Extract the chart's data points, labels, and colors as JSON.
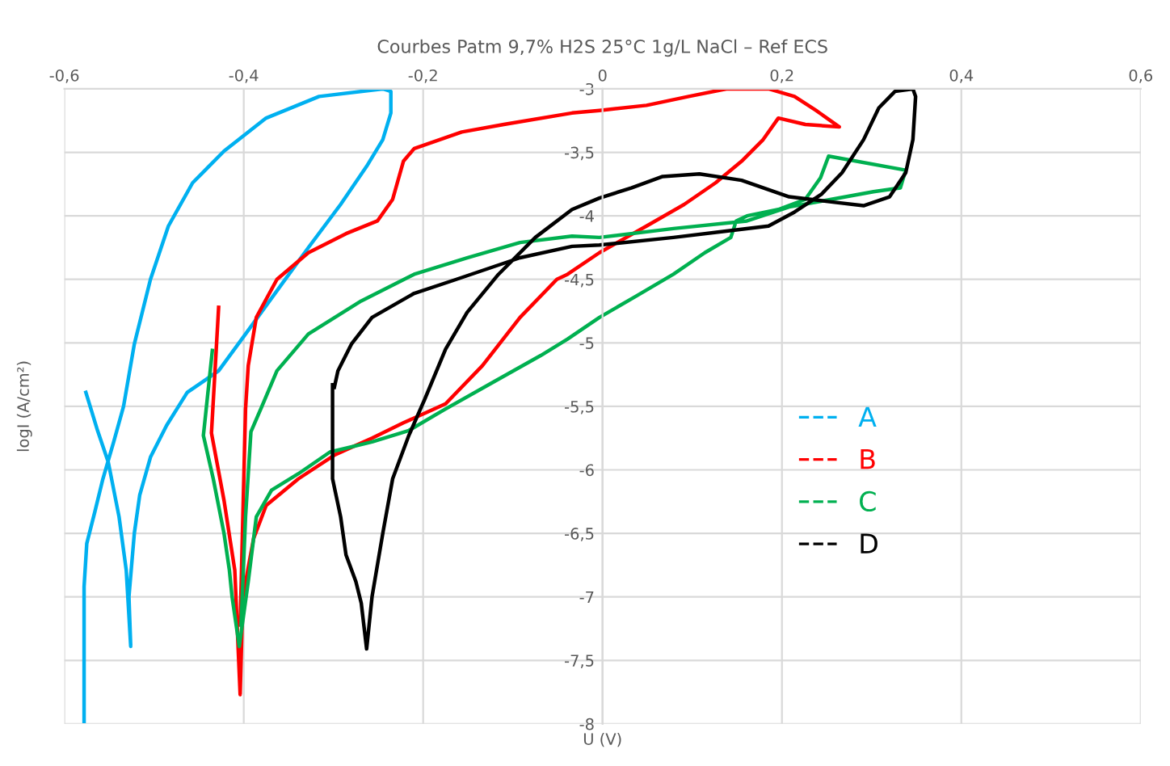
{
  "chart_data": {
    "type": "line",
    "title": "Courbes Patm 9,7% H2S 25°C 1g/L NaCl – Ref ECS",
    "xlabel": "U (V)",
    "ylabel": "logI (A/cm²)",
    "xlim": [
      -0.6,
      0.6
    ],
    "ylim": [
      -8,
      -3
    ],
    "xticks": [
      {
        "value": -0.6,
        "label": "-0,6"
      },
      {
        "value": -0.4,
        "label": "-0,4"
      },
      {
        "value": -0.2,
        "label": "-0,2"
      },
      {
        "value": 0,
        "label": "0"
      },
      {
        "value": 0.2,
        "label": "0,2"
      },
      {
        "value": 0.4,
        "label": "0,4"
      },
      {
        "value": 0.6,
        "label": "0,6"
      }
    ],
    "yticks": [
      -3,
      {
        "value": -3.5,
        "label": "-3,5"
      },
      -4,
      {
        "value": -4.5,
        "label": "-4,5"
      },
      -5,
      {
        "value": -5.5,
        "label": "-5,5"
      },
      -6,
      {
        "value": -6.5,
        "label": "-6,5"
      },
      -7,
      {
        "value": -7.5,
        "label": "-7,5"
      },
      -8
    ],
    "grid": true,
    "legend": "right",
    "marker": "none",
    "line_style": "solid",
    "series": [
      {
        "name": "A",
        "color": "#00b0f0",
        "x": [
          -0.576,
          -0.563,
          -0.551,
          -0.539,
          -0.531,
          -0.526,
          -0.528,
          -0.522,
          -0.516,
          -0.504,
          -0.486,
          -0.463,
          -0.428,
          -0.398,
          -0.363,
          -0.328,
          -0.292,
          -0.263,
          -0.245,
          -0.236,
          -0.236,
          -0.245,
          -0.316,
          -0.375,
          -0.422,
          -0.457,
          -0.484,
          -0.504,
          -0.522,
          -0.534,
          -0.545,
          -0.557,
          -0.566,
          -0.575,
          -0.578,
          -0.578
        ],
        "values": [
          -5.39,
          -5.69,
          -5.94,
          -6.37,
          -6.79,
          -7.39,
          -7.0,
          -6.5,
          -6.2,
          -5.9,
          -5.65,
          -5.39,
          -5.22,
          -4.93,
          -4.59,
          -4.25,
          -3.91,
          -3.61,
          -3.4,
          -3.19,
          -3.02,
          -3.0,
          -3.06,
          -3.23,
          -3.49,
          -3.74,
          -4.08,
          -4.5,
          -5.01,
          -5.5,
          -5.78,
          -6.07,
          -6.33,
          -6.58,
          -6.92,
          -7.98
        ]
      },
      {
        "name": "B",
        "color": "#ff0000",
        "x": [
          -0.428,
          -0.436,
          -0.422,
          -0.41,
          -0.404,
          -0.401,
          -0.389,
          -0.375,
          -0.339,
          -0.298,
          -0.257,
          -0.222,
          -0.175,
          -0.134,
          -0.092,
          -0.051,
          -0.039,
          -0.0035,
          0.049,
          0.091,
          0.126,
          0.155,
          0.179,
          0.196,
          0.226,
          0.264,
          0.238,
          0.214,
          0.185,
          0.138,
          0.096,
          0.049,
          -0.0035,
          -0.034,
          -0.11,
          -0.157,
          -0.21,
          -0.222,
          -0.234,
          -0.251,
          -0.286,
          -0.328,
          -0.363,
          -0.386,
          -0.395,
          -0.398,
          -0.401,
          -0.404
        ],
        "values": [
          -4.72,
          -5.71,
          -6.24,
          -6.79,
          -7.77,
          -7.0,
          -6.54,
          -6.28,
          -6.07,
          -5.88,
          -5.75,
          -5.63,
          -5.48,
          -5.18,
          -4.8,
          -4.5,
          -4.46,
          -4.29,
          -4.08,
          -3.91,
          -3.74,
          -3.57,
          -3.4,
          -3.23,
          -3.28,
          -3.3,
          -3.17,
          -3.06,
          -3.0,
          -3.0,
          -3.06,
          -3.13,
          -3.17,
          -3.19,
          -3.28,
          -3.34,
          -3.47,
          -3.57,
          -3.87,
          -4.04,
          -4.14,
          -4.29,
          -4.5,
          -4.8,
          -5.18,
          -5.52,
          -6.37,
          -7.22
        ]
      },
      {
        "name": "C",
        "color": "#00b050",
        "x": [
          -0.435,
          -0.445,
          -0.434,
          -0.422,
          -0.416,
          -0.413,
          -0.405,
          -0.395,
          -0.386,
          -0.369,
          -0.339,
          -0.304,
          -0.257,
          -0.216,
          -0.175,
          -0.122,
          -0.069,
          -0.039,
          -0.0035,
          0.038,
          0.079,
          0.114,
          0.143,
          0.149,
          0.161,
          0.196,
          0.226,
          0.243,
          0.252,
          0.338,
          0.332,
          0.302,
          0.255,
          0.208,
          0.161,
          0.079,
          -0.0035,
          -0.034,
          -0.092,
          -0.151,
          -0.21,
          -0.269,
          -0.328,
          -0.363,
          -0.381,
          -0.392,
          -0.398,
          -0.403
        ],
        "values": [
          -5.06,
          -5.73,
          -6.07,
          -6.5,
          -6.79,
          -7.0,
          -7.39,
          -6.88,
          -6.37,
          -6.16,
          -6.03,
          -5.86,
          -5.78,
          -5.69,
          -5.52,
          -5.31,
          -5.1,
          -4.97,
          -4.8,
          -4.63,
          -4.46,
          -4.29,
          -4.17,
          -4.04,
          -4.0,
          -3.95,
          -3.87,
          -3.7,
          -3.53,
          -3.64,
          -3.78,
          -3.81,
          -3.87,
          -3.93,
          -4.04,
          -4.1,
          -4.17,
          -4.16,
          -4.21,
          -4.33,
          -4.46,
          -4.67,
          -4.93,
          -5.22,
          -5.52,
          -5.7,
          -6.37,
          -7.22
        ]
      },
      {
        "name": "D",
        "color": "#000000",
        "x": [
          -0.301,
          -0.301,
          -0.301,
          -0.292,
          -0.286,
          -0.275,
          -0.269,
          -0.263,
          -0.257,
          -0.245,
          -0.234,
          -0.216,
          -0.198,
          -0.175,
          -0.151,
          -0.116,
          -0.075,
          -0.034,
          -0.0035,
          0.032,
          0.067,
          0.108,
          0.155,
          0.208,
          0.255,
          0.291,
          0.32,
          0.338,
          0.346,
          0.349,
          0.346,
          0.326,
          0.308,
          0.291,
          0.267,
          0.244,
          0.214,
          0.185,
          0.138,
          0.079,
          -0.0035,
          -0.034,
          -0.092,
          -0.163,
          -0.21,
          -0.257,
          -0.28,
          -0.295,
          -0.299
        ],
        "values": [
          -5.33,
          -5.69,
          -6.07,
          -6.37,
          -6.67,
          -6.88,
          -7.05,
          -7.41,
          -7.0,
          -6.5,
          -6.07,
          -5.73,
          -5.44,
          -5.05,
          -4.76,
          -4.46,
          -4.17,
          -3.95,
          -3.86,
          -3.78,
          -3.69,
          -3.67,
          -3.72,
          -3.85,
          -3.89,
          -3.92,
          -3.85,
          -3.66,
          -3.4,
          -3.06,
          -3.0,
          -3.02,
          -3.15,
          -3.4,
          -3.66,
          -3.83,
          -3.97,
          -4.08,
          -4.12,
          -4.17,
          -4.23,
          -4.24,
          -4.33,
          -4.5,
          -4.61,
          -4.8,
          -5.01,
          -5.22,
          -5.35
        ]
      }
    ]
  }
}
